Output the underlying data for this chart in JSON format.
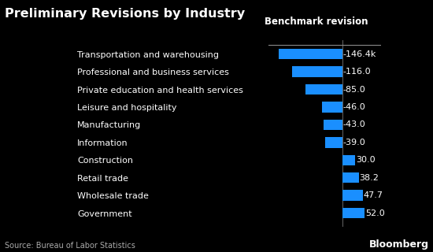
{
  "title": "Preliminary Revisions by Industry",
  "column_label": "Benchmark revision",
  "source": "Source: Bureau of Labor Statistics",
  "watermark": "Bloomberg",
  "categories": [
    "Transportation and warehousing",
    "Professional and business services",
    "Private education and health services",
    "Leisure and hospitality",
    "Manufacturing",
    "Information",
    "Construction",
    "Retail trade",
    "Wholesale trade",
    "Government"
  ],
  "values": [
    -146.4,
    -116.0,
    -85.0,
    -46.0,
    -43.0,
    -39.0,
    30.0,
    38.2,
    47.7,
    52.0
  ],
  "labels": [
    "-146.4k",
    "-116.0",
    "-85.0",
    "-46.0",
    "-43.0",
    "-39.0",
    "30.0",
    "38.2",
    "47.7",
    "52.0"
  ],
  "bar_color": "#1a8fff",
  "background_color": "#000000",
  "text_color": "#ffffff",
  "label_color": "#ffffff",
  "title_fontsize": 11.5,
  "col_label_fontsize": 8.5,
  "tick_fontsize": 8,
  "value_fontsize": 8,
  "source_fontsize": 7,
  "watermark_fontsize": 9,
  "xlim": [
    -170,
    90
  ]
}
